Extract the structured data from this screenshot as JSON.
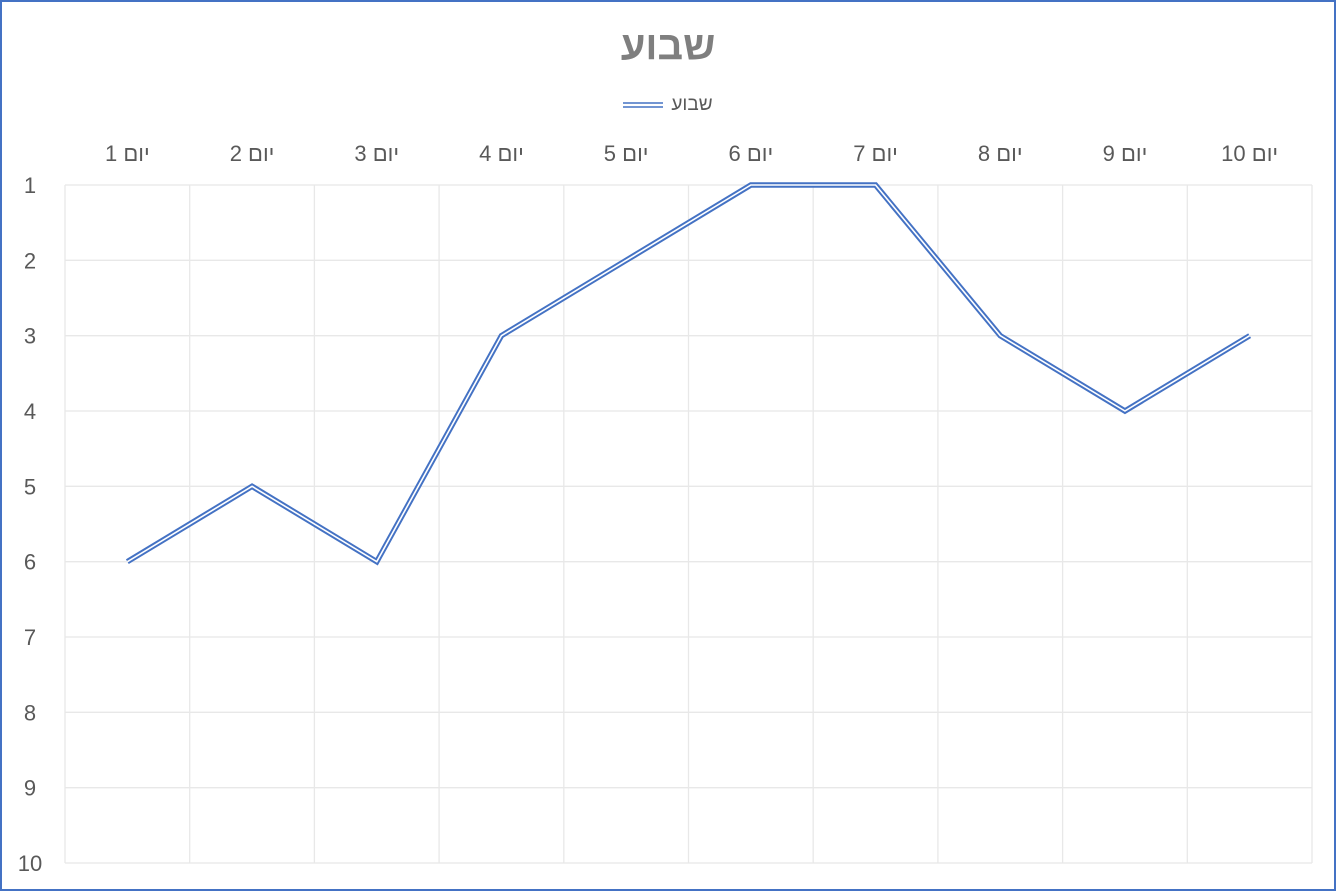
{
  "chart_data": {
    "type": "line",
    "title": "שבוע",
    "categories": [
      "יום 1",
      "יום 2",
      "יום 3",
      "יום 4",
      "יום 5",
      "יום 6",
      "יום 7",
      "יום 8",
      "יום 9",
      "יום 10"
    ],
    "series": [
      {
        "name": "שבוע",
        "values": [
          6,
          5,
          6,
          3,
          2,
          1,
          1,
          3,
          4,
          3
        ]
      }
    ],
    "y_ticks": [
      "1",
      "2",
      "3",
      "4",
      "5",
      "6",
      "7",
      "8",
      "9",
      "10"
    ],
    "ylim": [
      1,
      10
    ],
    "y_axis_reversed": true,
    "x_axis_position": "top",
    "grid": true,
    "legend_position": "top",
    "line_style": "double",
    "series_color": "#4472c4",
    "grid_color": "#e8e8e8",
    "frame_color": "#4472c4"
  }
}
